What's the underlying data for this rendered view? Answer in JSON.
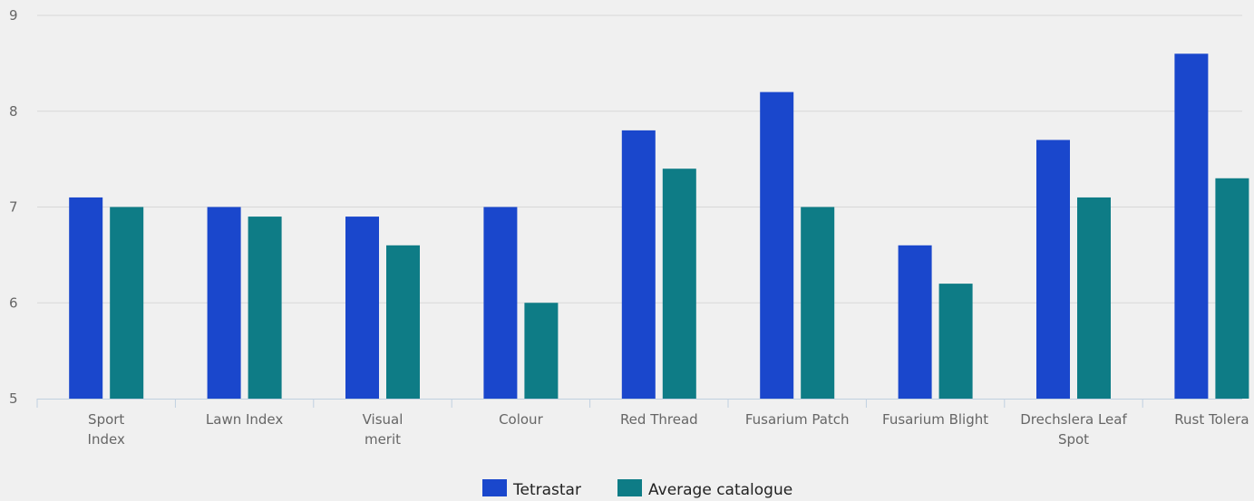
{
  "chart_data": {
    "type": "bar",
    "categories": [
      "Sport Index",
      "Lawn Index",
      "Visual merit",
      "Colour",
      "Red Thread",
      "Fusarium Patch",
      "Fusarium Blight",
      "Drechslera Leaf Spot",
      "Rust Tolera"
    ],
    "category_lines": [
      [
        "Sport",
        "Index"
      ],
      [
        "Lawn Index"
      ],
      [
        "Visual",
        "merit"
      ],
      [
        "Colour"
      ],
      [
        "Red Thread"
      ],
      [
        "Fusarium Patch"
      ],
      [
        "Fusarium Blight"
      ],
      [
        "Drechslera Leaf",
        "Spot"
      ],
      [
        "Rust Tolera"
      ]
    ],
    "series": [
      {
        "name": "Tetrastar",
        "color": "#1a47cc",
        "values": [
          7.1,
          7.0,
          6.9,
          7.0,
          7.8,
          8.2,
          6.6,
          7.7,
          8.6
        ]
      },
      {
        "name": "Average catalogue",
        "color": "#0e7c86",
        "values": [
          7.0,
          6.9,
          6.6,
          6.0,
          7.4,
          7.0,
          6.2,
          7.1,
          7.3
        ]
      }
    ],
    "ylim": [
      5,
      9
    ],
    "yticks": [
      5,
      6,
      7,
      8,
      9
    ],
    "grid": true,
    "legend_position": "bottom-center",
    "title": "",
    "xlabel": "",
    "ylabel": ""
  }
}
